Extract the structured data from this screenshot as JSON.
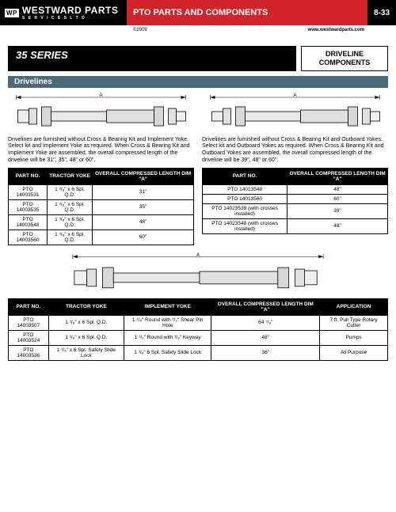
{
  "header": {
    "logo_prefix": "WP",
    "logo_main": "WESTWARD PARTS",
    "logo_sub": "S E R V I C E S   L T D",
    "title": "PTO PARTS AND COMPONENTS",
    "page_no": "8-33",
    "copyright": "©2009",
    "url": "www.westwardparts.com"
  },
  "series_label": "35 SERIES",
  "component_box_l1": "DRIVELINE",
  "component_box_l2": "COMPONENTS",
  "section_header": "Drivelines",
  "dim_label": "A",
  "left": {
    "desc": "Drivelines are furnished without Cross & Bearing Kit and Implement Yoke. Select kit and Implement Yoke as required. When Cross & Bearing Kit and Implement Yoke are assembled, the overall compressed length of the driveline will be 31\", 35\", 48\" or 60\".",
    "headers": [
      "PART NO.",
      "TRACTOR YOKE",
      "OVERALL COMPRESSED LENGTH DIM \"A\""
    ],
    "rows": [
      [
        "PTO 14003531",
        "1 ³/₈\" x 6 Spl. Q.D.",
        "31\""
      ],
      [
        "PTO 14003535",
        "1 ³/₈\" x 6 Spl. Q.D.",
        "35\""
      ],
      [
        "PTO 14003548",
        "1 ³/₈\" x 6 Spl. Q.D.",
        "48\""
      ],
      [
        "PTO 14003560",
        "1 ³/₈\" x 6 Spl. Q.D.",
        "60\""
      ]
    ]
  },
  "right": {
    "desc": "Drivelines are furnished without Cross & Bearing Kit and Outboard Yokes. Select kit and Outboard Yokes as required. When Cross & Bearing Kit and Outboard Yokes are assembled, the overall compressed length of the driveline will be 39\", 48\" or 60\".",
    "headers": [
      "PART NO.",
      "OVERALL COMPRESSED LENGTH DIM \"A\""
    ],
    "rows": [
      [
        "PTO 14013548",
        "48\""
      ],
      [
        "PTO 14013560",
        "60\""
      ],
      [
        "PTO 14023539 (with crosses installed)",
        "39\""
      ],
      [
        "PTO 14023548 (with crosses installed)",
        "48\""
      ]
    ]
  },
  "bottom": {
    "headers": [
      "PART NO.",
      "TRACTOR YOKE",
      "IMPLEMENT YOKE",
      "OVERALL COMPRESSED LENGTH DIM \"A\"",
      "APPLICATION"
    ],
    "rows": [
      [
        "PTO 14003507",
        "1 ³/₈\" x 6 Spl. Q.D.",
        "1 ¹/₄\" Round with ¹/₂\" Shear Pin Hole",
        "64 ⁷/₈\"",
        "7 ft. Pull Type Rotary Cutter"
      ],
      [
        "PTO 14003524",
        "1 ³/₈\" x 6 Spl. Q.D.",
        "1 ¹/₂\" Round with ³/₈\" Keyway",
        "48\"",
        "Pumps"
      ],
      [
        "PTO 14003536",
        "1 ³/₈\" x 6 Spl. Safety Slide Lock",
        "1 ³/₈\" 6 Spl. Safety Slide Lock",
        "36\"",
        "All Purpose"
      ]
    ]
  },
  "colors": {
    "red": "#d2232a",
    "black": "#000000",
    "section_bg": "#4a6a7a"
  }
}
